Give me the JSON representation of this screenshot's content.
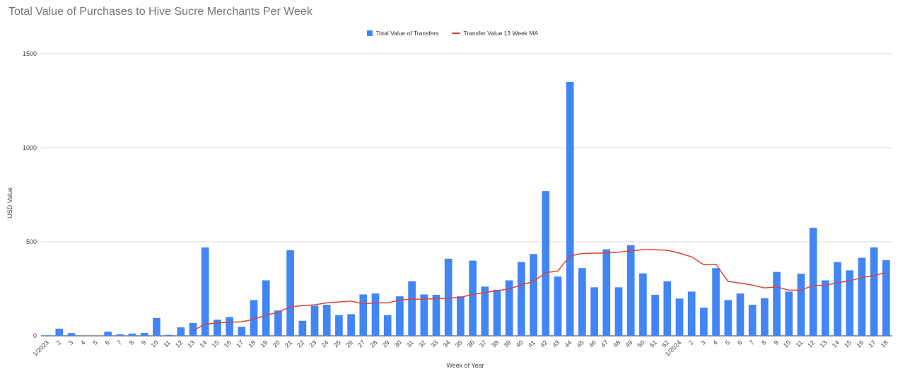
{
  "chart_data": {
    "type": "bar",
    "title": "Total Value of Purchases to Hive Sucre Merchants Per Week",
    "xlabel": "Week of Year",
    "ylabel": "USD Value",
    "ylim": [
      0,
      1500
    ],
    "yticks": [
      "0",
      "500",
      "1000",
      "1500"
    ],
    "grid": true,
    "legend_position": "top-center",
    "categories": [
      "1/2023",
      "2",
      "3",
      "4",
      "5",
      "6",
      "7",
      "8",
      "9",
      "10",
      "11",
      "12",
      "13",
      "14",
      "15",
      "16",
      "17",
      "18",
      "19",
      "20",
      "21",
      "22",
      "23",
      "24",
      "25",
      "26",
      "27",
      "28",
      "29",
      "30",
      "31",
      "32",
      "33",
      "34",
      "35",
      "36",
      "37",
      "38",
      "39",
      "40",
      "41",
      "42",
      "43",
      "44",
      "45",
      "46",
      "47",
      "48",
      "49",
      "50",
      "51",
      "52",
      "1/2024",
      "2",
      "3",
      "4",
      "5",
      "6",
      "7",
      "8",
      "9",
      "10",
      "11",
      "12",
      "13",
      "14",
      "15",
      "16",
      "17",
      "18"
    ],
    "series": [
      {
        "name": "Total Value of Transfers",
        "type": "bar",
        "color": "#4285f4",
        "values": [
          3,
          38,
          14,
          0,
          0,
          22,
          8,
          12,
          15,
          95,
          5,
          45,
          68,
          470,
          86,
          100,
          48,
          190,
          295,
          135,
          455,
          80,
          160,
          165,
          110,
          115,
          220,
          225,
          110,
          210,
          290,
          220,
          218,
          410,
          210,
          400,
          262,
          245,
          295,
          392,
          435,
          770,
          315,
          1350,
          360,
          258,
          460,
          258,
          482,
          332,
          218,
          290,
          198,
          235,
          150,
          360,
          190,
          225,
          165,
          200,
          340,
          235,
          330,
          575,
          295,
          392,
          348,
          415,
          470,
          402
        ]
      },
      {
        "name": "Transfer Value 13 Week MA",
        "type": "line",
        "color": "#db4437",
        "values": [
          null,
          null,
          null,
          null,
          null,
          null,
          null,
          null,
          null,
          null,
          null,
          null,
          28,
          62,
          68,
          72,
          75,
          88,
          110,
          125,
          155,
          160,
          165,
          175,
          180,
          185,
          170,
          175,
          175,
          190,
          195,
          195,
          198,
          200,
          205,
          220,
          230,
          240,
          250,
          270,
          290,
          335,
          345,
          425,
          438,
          440,
          440,
          445,
          452,
          458,
          458,
          455,
          440,
          420,
          378,
          380,
          290,
          280,
          270,
          255,
          260,
          243,
          243,
          268,
          268,
          283,
          292,
          310,
          320,
          337
        ]
      }
    ]
  }
}
